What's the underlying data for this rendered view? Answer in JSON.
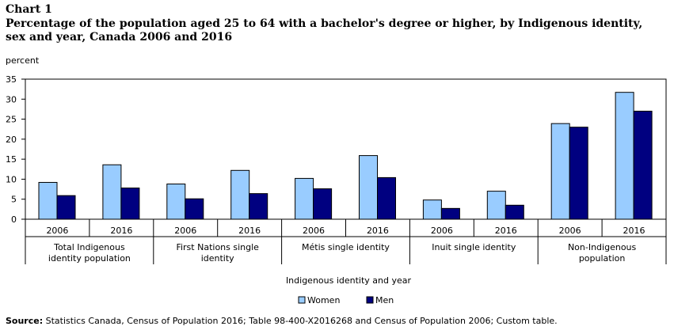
{
  "chart_label": "Chart 1",
  "chart_data": {
    "type": "bar",
    "title": "Percentage of the population aged 25 to 64 with a bachelor's degree or higher, by Indigenous identity, sex and year, Canada 2006 and 2016",
    "ylabel": "percent",
    "xlabel": "Indigenous identity and year",
    "ylim": [
      0,
      35
    ],
    "yticks": [
      0,
      5,
      10,
      15,
      20,
      25,
      30,
      35
    ],
    "grid": false,
    "legend_position": "bottom",
    "groups": [
      {
        "name": "Total Indigenous identity population",
        "years": [
          "2006",
          "2016"
        ]
      },
      {
        "name": "First Nations single identity",
        "years": [
          "2006",
          "2016"
        ]
      },
      {
        "name": "Métis single identity",
        "years": [
          "2006",
          "2016"
        ]
      },
      {
        "name": "Inuit single identity",
        "years": [
          "2006",
          "2016"
        ]
      },
      {
        "name": "Non-Indigenous population",
        "years": [
          "2006",
          "2016"
        ]
      }
    ],
    "categories": [
      "Total Indigenous identity population 2006",
      "Total Indigenous identity population 2016",
      "First Nations single identity 2006",
      "First Nations single identity 2016",
      "Métis single identity 2006",
      "Métis single identity 2016",
      "Inuit single identity 2006",
      "Inuit single identity 2016",
      "Non-Indigenous population 2006",
      "Non-Indigenous population 2016"
    ],
    "series": [
      {
        "name": "Women",
        "color": "#99ccff",
        "values": [
          9.2,
          13.6,
          8.8,
          12.2,
          10.2,
          15.9,
          4.8,
          7.0,
          23.9,
          31.7
        ]
      },
      {
        "name": "Men",
        "color": "#000080",
        "values": [
          5.9,
          7.8,
          5.1,
          6.4,
          7.6,
          10.4,
          2.7,
          3.5,
          23.0,
          27.0
        ]
      }
    ]
  },
  "source": {
    "label": "Source:",
    "text": "Statistics Canada, Census of Population 2016; Table 98-400-X2016268 and Census of Population 2006; Custom table."
  }
}
